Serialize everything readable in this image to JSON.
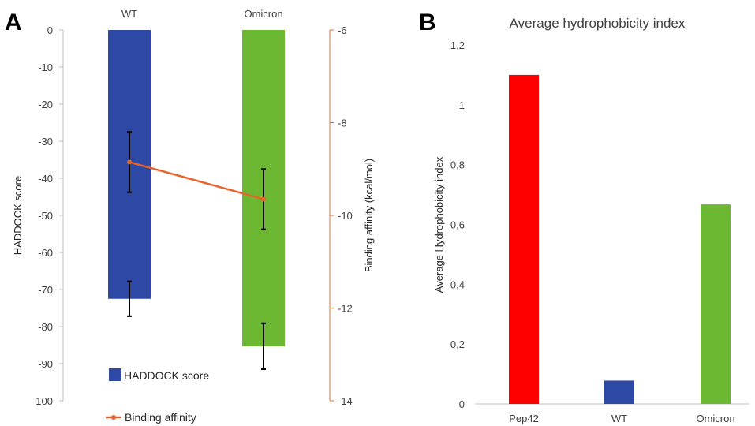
{
  "panels": {
    "a_letter": "A",
    "b_letter": "B"
  },
  "chart_data": [
    {
      "type": "bar",
      "categories": [
        "WT",
        "Omicron"
      ],
      "series": [
        {
          "name": "HADDOCK score",
          "axis": "left",
          "color": "#2E48A6",
          "values": [
            -72.5,
            -85.3
          ],
          "error": [
            4.7,
            6.2
          ]
        },
        {
          "name": "Binding affinity",
          "axis": "right",
          "type": "line",
          "color": "#E8642C",
          "values": [
            -8.85,
            -9.65
          ],
          "error": [
            0.65,
            0.65
          ]
        }
      ],
      "title": "",
      "xlabel": "",
      "ylabel": "HADDOCK score",
      "y2label": "Binding affinity (kcal/mol)",
      "ylim": [
        -100,
        0
      ],
      "y2lim": [
        -14,
        -6
      ],
      "yticks": [
        "0",
        "-10",
        "-20",
        "-30",
        "-40",
        "-50",
        "-60",
        "-70",
        "-80",
        "-90",
        "-100"
      ],
      "y2ticks": [
        "-6",
        "-8",
        "-10",
        "-12",
        "-14"
      ],
      "categories_position": "top",
      "legend": "bottom-left",
      "grid": false
    },
    {
      "type": "bar",
      "categories": [
        "Pep42",
        "WT",
        "Omicron"
      ],
      "values": [
        1.1,
        0.078,
        0.667
      ],
      "colors": [
        "#FF0000",
        "#2E48A6",
        "#6DB832"
      ],
      "title": "Average hydrophobicity index",
      "xlabel": "",
      "ylabel": "Average Hydrophobicity index",
      "ylim": [
        0,
        1.2
      ],
      "yticks": [
        "0",
        "0,2",
        "0,4",
        "0,6",
        "0,8",
        "1",
        "1,2"
      ],
      "grid": false,
      "legend": "none"
    }
  ],
  "colors": {
    "omicron_bar_a": "#6DB832",
    "axis": "#BFBFBF",
    "right_axis": "#E8642C"
  }
}
